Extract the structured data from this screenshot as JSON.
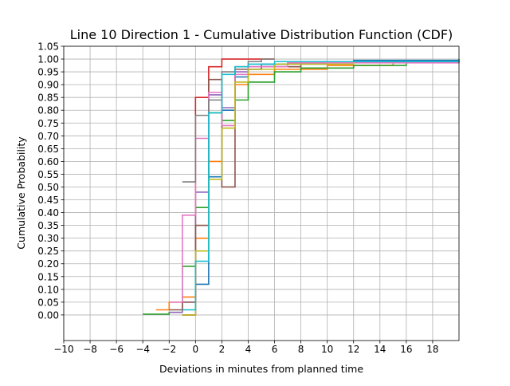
{
  "chart_data": {
    "type": "line",
    "step": true,
    "title": "Line 10 Direction 1 - Cumulative Distribution Function (CDF)",
    "xlabel": "Deviations in minutes from planned time",
    "ylabel": "Cumulative Probability",
    "xlim": [
      -10,
      20
    ],
    "ylim": [
      -0.1,
      1.05
    ],
    "xticks": [
      "−10",
      "−8",
      "−6",
      "−4",
      "−2",
      "0",
      "2",
      "4",
      "6",
      "8",
      "10",
      "12",
      "14",
      "16",
      "18"
    ],
    "yticks": [
      "0.00",
      "0.05",
      "0.10",
      "0.15",
      "0.20",
      "0.25",
      "0.30",
      "0.35",
      "0.40",
      "0.45",
      "0.50",
      "0.55",
      "0.60",
      "0.65",
      "0.70",
      "0.75",
      "0.80",
      "0.85",
      "0.90",
      "0.95",
      "1.00",
      "1.05"
    ],
    "grid": true,
    "legend": "none",
    "series": [
      {
        "color": "#1f77b4",
        "x": [
          -1,
          0,
          1,
          2,
          3,
          4,
          5,
          7,
          9,
          12,
          20
        ],
        "y": [
          0.0,
          0.12,
          0.54,
          0.8,
          0.93,
          0.96,
          0.98,
          0.985,
          0.99,
          0.995,
          1.0
        ]
      },
      {
        "color": "#ff7f0e",
        "x": [
          -3,
          -2,
          -1,
          0,
          1,
          2,
          3,
          4,
          6,
          10,
          15,
          20
        ],
        "y": [
          0.02,
          0.05,
          0.07,
          0.3,
          0.6,
          0.73,
          0.9,
          0.94,
          0.96,
          0.975,
          0.99,
          1.0
        ]
      },
      {
        "color": "#2ca02c",
        "x": [
          -4,
          -2,
          -1,
          0,
          1,
          2,
          3,
          4,
          6,
          8,
          12,
          16,
          20
        ],
        "y": [
          0.003,
          0.01,
          0.19,
          0.42,
          0.79,
          0.76,
          0.84,
          0.91,
          0.95,
          0.965,
          0.975,
          0.99,
          1.0
        ]
      },
      {
        "color": "#d62728",
        "x": [
          -1,
          0,
          1,
          2,
          3,
          4,
          5
        ],
        "y": [
          0.0,
          0.85,
          0.97,
          1.0,
          1.0,
          1.0,
          1.0
        ]
      },
      {
        "color": "#9467bd",
        "x": [
          -2,
          -1,
          0,
          1,
          2,
          3,
          4,
          6,
          10,
          20
        ],
        "y": [
          0.01,
          0.05,
          0.48,
          0.86,
          0.81,
          0.95,
          0.97,
          0.98,
          0.99,
          1.0
        ]
      },
      {
        "color": "#8c564b",
        "x": [
          -2,
          -1,
          0,
          1,
          2,
          3,
          5,
          8,
          20
        ],
        "y": [
          0.02,
          0.05,
          0.35,
          0.92,
          0.5,
          0.96,
          0.97,
          0.99,
          1.0
        ]
      },
      {
        "color": "#e377c2",
        "x": [
          -2,
          -1,
          0,
          1,
          2,
          3,
          4,
          7,
          20
        ],
        "y": [
          0.05,
          0.39,
          0.69,
          0.87,
          0.74,
          0.94,
          0.97,
          0.985,
          1.0
        ]
      },
      {
        "color": "#7f7f7f",
        "x": [
          -1,
          0,
          1,
          2,
          3,
          4,
          5
        ],
        "y": [
          0.52,
          0.78,
          0.84,
          0.95,
          0.97,
          0.99,
          1.0
        ]
      },
      {
        "color": "#bcbd22",
        "x": [
          -1,
          0,
          1,
          2,
          3,
          4,
          6,
          12,
          20
        ],
        "y": [
          0.0,
          0.25,
          0.53,
          0.73,
          0.91,
          0.96,
          0.98,
          0.99,
          1.0
        ]
      },
      {
        "color": "#17becf",
        "x": [
          -1,
          0,
          1,
          2,
          3,
          4,
          6,
          20
        ],
        "y": [
          0.02,
          0.21,
          0.79,
          0.94,
          0.97,
          0.98,
          0.99,
          1.0
        ]
      }
    ]
  }
}
